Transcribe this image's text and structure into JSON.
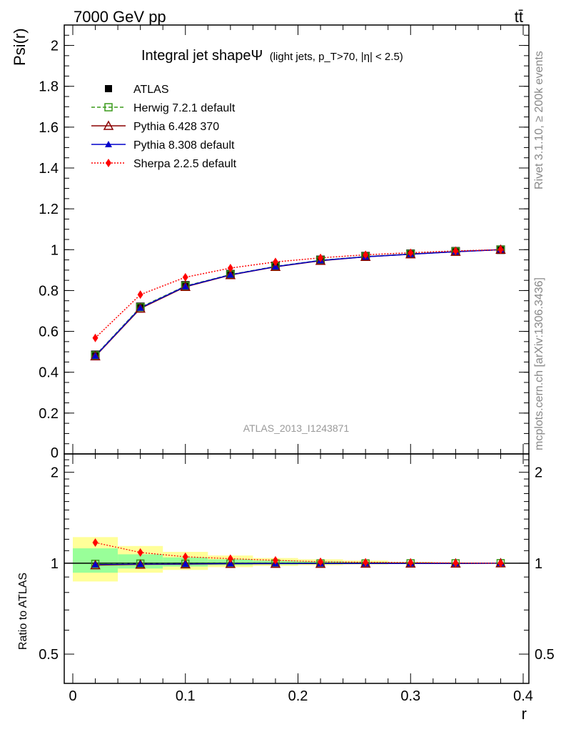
{
  "header": {
    "left": "7000 GeV pp",
    "right": "tt̄"
  },
  "side": {
    "rivet": "Rivet 3.1.10, ≥ 200k events",
    "mcplots": "mcplots.cern.ch [arXiv:1306.3436]"
  },
  "watermark": "ATLAS_2013_I1243871",
  "colors": {
    "atlas": "#000000",
    "herwig": "#3a9a1a",
    "pythia6": "#8b0000",
    "pythia8": "#0000cc",
    "sherpa": "#ff0000",
    "band_outer": "#ffff99",
    "band_inner": "#99ff99"
  },
  "chart_data": [
    {
      "type": "line",
      "title": "Integral jet shapeΨ",
      "subtitle": "(light jets, p_T>70, |η| < 2.5)",
      "xlabel": "r",
      "ylabel": "Psi(r)",
      "xlim": [
        0,
        0.4
      ],
      "ylim": [
        0,
        2.1
      ],
      "xticks": [
        "0",
        "0.1",
        "0.2",
        "0.3",
        "0.4"
      ],
      "yticks": [
        "0",
        "0.2",
        "0.4",
        "0.6",
        "0.8",
        "1",
        "1.2",
        "1.4",
        "1.6",
        "1.8",
        "2"
      ],
      "legend_position": "top-left",
      "x": [
        0.02,
        0.06,
        0.1,
        0.14,
        0.18,
        0.22,
        0.26,
        0.3,
        0.34,
        0.38
      ],
      "series": [
        {
          "name": "ATLAS",
          "values": [
            0.485,
            0.72,
            0.825,
            0.88,
            0.92,
            0.95,
            0.968,
            0.98,
            0.992,
            1.0
          ]
        },
        {
          "name": "Herwig 7.2.1 default",
          "values": [
            0.482,
            0.718,
            0.822,
            0.878,
            0.918,
            0.948,
            0.966,
            0.979,
            0.991,
            1.0
          ]
        },
        {
          "name": "Pythia 6.428 370",
          "values": [
            0.478,
            0.712,
            0.818,
            0.876,
            0.916,
            0.946,
            0.965,
            0.978,
            0.99,
            1.0
          ]
        },
        {
          "name": "Pythia 8.308 default",
          "values": [
            0.48,
            0.715,
            0.82,
            0.877,
            0.917,
            0.947,
            0.965,
            0.978,
            0.99,
            1.0
          ]
        },
        {
          "name": "Sherpa 2.2.5 default",
          "values": [
            0.568,
            0.78,
            0.865,
            0.91,
            0.94,
            0.96,
            0.975,
            0.985,
            0.994,
            1.0
          ]
        }
      ]
    },
    {
      "type": "line",
      "ylabel": "Ratio to ATLAS",
      "xlabel": "r",
      "xlim": [
        0,
        0.4
      ],
      "ylim": [
        0.4,
        2.3
      ],
      "yscale": "log",
      "yticks": [
        "0.5",
        "1",
        "2"
      ],
      "x": [
        0.02,
        0.06,
        0.1,
        0.14,
        0.18,
        0.22,
        0.26,
        0.3,
        0.34,
        0.38
      ],
      "bands": {
        "edges": [
          0.0,
          0.04,
          0.08,
          0.12,
          0.16,
          0.2,
          0.24,
          0.28,
          0.32,
          0.36,
          0.4
        ],
        "outer": [
          [
            0.87,
            1.22
          ],
          [
            0.93,
            1.14
          ],
          [
            0.95,
            1.09
          ],
          [
            0.97,
            1.06
          ],
          [
            0.98,
            1.04
          ],
          [
            0.985,
            1.03
          ],
          [
            0.99,
            1.02
          ],
          [
            0.995,
            1.01
          ],
          [
            0.997,
            1.005
          ],
          [
            0.999,
            1.002
          ]
        ],
        "inner": [
          [
            0.93,
            1.12
          ],
          [
            0.96,
            1.07
          ],
          [
            0.975,
            1.045
          ],
          [
            0.985,
            1.03
          ],
          [
            0.99,
            1.02
          ],
          [
            0.993,
            1.015
          ],
          [
            0.995,
            1.01
          ],
          [
            0.997,
            1.006
          ],
          [
            0.998,
            1.003
          ],
          [
            0.999,
            1.001
          ]
        ]
      },
      "series": [
        {
          "name": "Herwig 7.2.1 default",
          "values": [
            0.995,
            0.997,
            0.996,
            0.998,
            0.998,
            0.998,
            0.998,
            0.999,
            0.999,
            1.0
          ]
        },
        {
          "name": "Pythia 6.428 370",
          "values": [
            0.985,
            0.99,
            0.992,
            0.995,
            0.996,
            0.996,
            0.997,
            0.998,
            0.998,
            1.0
          ]
        },
        {
          "name": "Pythia 8.308 default",
          "values": [
            0.99,
            0.993,
            0.994,
            0.997,
            0.997,
            0.997,
            0.997,
            0.998,
            0.998,
            1.0
          ]
        },
        {
          "name": "Sherpa 2.2.5 default",
          "values": [
            1.17,
            1.085,
            1.05,
            1.035,
            1.022,
            1.011,
            1.007,
            1.005,
            1.002,
            1.0
          ]
        }
      ]
    }
  ]
}
